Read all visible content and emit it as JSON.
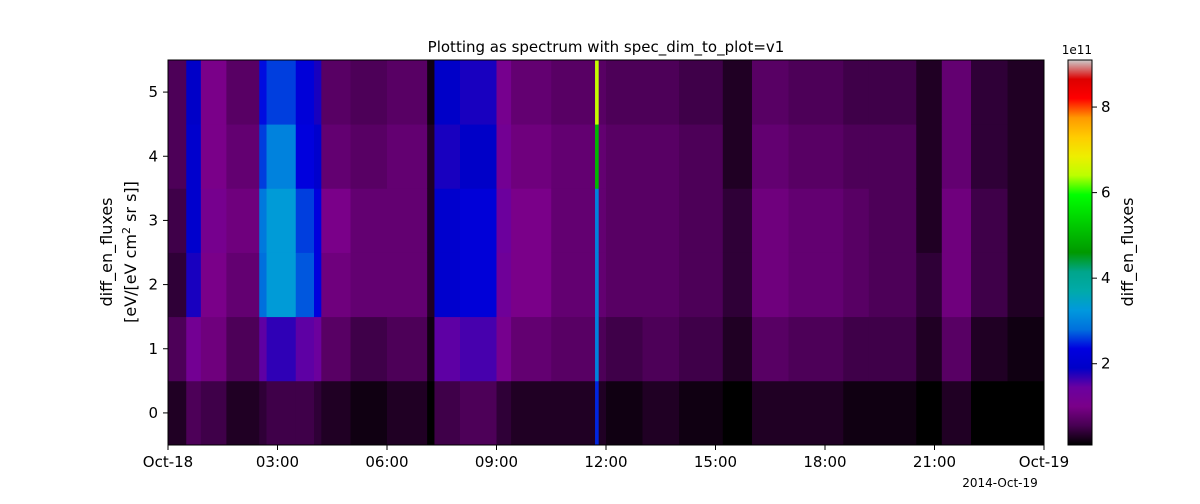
{
  "chart_data": {
    "type": "heatmap",
    "title": "Plotting as spectrum with spec_dim_to_plot=v1",
    "ylabel_line1": "diff_en_fluxes",
    "ylabel_line2_prefix": "[eV/[eV cm",
    "ylabel_line2_sup": "2",
    "ylabel_line2_suffix": " sr s]]",
    "x_tick_labels": [
      "Oct-18",
      "03:00",
      "06:00",
      "09:00",
      "12:00",
      "15:00",
      "18:00",
      "21:00",
      "Oct-19"
    ],
    "x_tick_hours": [
      0,
      3,
      6,
      9,
      12,
      15,
      18,
      21,
      24
    ],
    "x_date_label": "2014-Oct-19",
    "xlim_hours": [
      0,
      24
    ],
    "y_tick_labels": [
      "0",
      "1",
      "2",
      "3",
      "4",
      "5"
    ],
    "y_tick_values": [
      0,
      1,
      2,
      3,
      4,
      5
    ],
    "ylim": [
      -0.5,
      5.5
    ],
    "y_bin_edges": [
      -0.5,
      0.5,
      1.5,
      2.5,
      3.5,
      4.5,
      5.5
    ],
    "colorbar": {
      "label": "diff_en_fluxes",
      "multiplier_label": "1e11",
      "tick_labels": [
        "2",
        "4",
        "6",
        "8"
      ],
      "tick_values": [
        2,
        4,
        6,
        8
      ],
      "range": [
        0.1,
        9.1
      ],
      "colormap": "nipy_spectral"
    },
    "segments_hours": [
      0,
      0.5,
      0.9,
      1.6,
      2.5,
      2.7,
      3.5,
      4.0,
      4.2,
      5.0,
      6.0,
      7.1,
      7.3,
      8.0,
      9.0,
      9.4,
      10.5,
      11.7,
      11.8,
      12.0,
      13.0,
      14.0,
      15.2,
      16.0,
      17.0,
      18.5,
      19.2,
      20.5,
      21.2,
      22.0,
      23.0,
      24.0
    ],
    "segment_values": [
      [
        0.3,
        0.6,
        0.4,
        0.5,
        0.6,
        0.6
      ],
      [
        0.6,
        1.2,
        1.8,
        2.0,
        2.0,
        1.9
      ],
      [
        0.5,
        0.9,
        1.0,
        1.1,
        1.0,
        1.0
      ],
      [
        0.3,
        0.6,
        0.8,
        0.9,
        0.8,
        0.7
      ],
      [
        0.4,
        1.5,
        2.8,
        2.9,
        2.6,
        2.4
      ],
      [
        0.5,
        1.7,
        3.3,
        3.3,
        3.0,
        2.6
      ],
      [
        0.5,
        1.5,
        2.7,
        2.6,
        2.3,
        2.2
      ],
      [
        0.4,
        1.4,
        2.3,
        2.3,
        2.0,
        1.8
      ],
      [
        0.3,
        0.7,
        0.9,
        1.0,
        0.8,
        0.7
      ],
      [
        0.2,
        0.5,
        0.8,
        0.8,
        0.7,
        0.6
      ],
      [
        0.3,
        0.6,
        0.8,
        0.8,
        0.8,
        0.7
      ],
      [
        0.1,
        0.2,
        0.3,
        0.3,
        0.3,
        0.2
      ],
      [
        0.5,
        1.5,
        2.0,
        2.0,
        1.8,
        1.9
      ],
      [
        0.6,
        1.6,
        2.2,
        2.2,
        1.9,
        1.8
      ],
      [
        0.4,
        1.1,
        1.3,
        1.4,
        1.2,
        1.1
      ],
      [
        0.3,
        0.8,
        1.0,
        1.0,
        0.9,
        0.8
      ],
      [
        0.3,
        0.7,
        0.8,
        0.8,
        0.8,
        0.7
      ],
      [
        2.5,
        3.0,
        3.0,
        3.0,
        5.0,
        6.5
      ],
      [
        0.3,
        0.6,
        0.8,
        0.8,
        0.8,
        0.7
      ],
      [
        0.2,
        0.5,
        0.7,
        0.7,
        0.7,
        0.6
      ],
      [
        0.3,
        0.6,
        0.7,
        0.7,
        0.7,
        0.6
      ],
      [
        0.2,
        0.5,
        0.6,
        0.6,
        0.6,
        0.5
      ],
      [
        0.1,
        0.3,
        0.4,
        0.4,
        0.3,
        0.3
      ],
      [
        0.3,
        0.7,
        0.9,
        0.9,
        0.8,
        0.7
      ],
      [
        0.3,
        0.6,
        0.8,
        0.8,
        0.7,
        0.6
      ],
      [
        0.2,
        0.5,
        0.7,
        0.7,
        0.6,
        0.5
      ],
      [
        0.2,
        0.5,
        0.6,
        0.6,
        0.6,
        0.5
      ],
      [
        0.1,
        0.3,
        0.4,
        0.3,
        0.3,
        0.3
      ],
      [
        0.3,
        0.7,
        0.9,
        0.9,
        0.8,
        0.8
      ],
      [
        0.1,
        0.3,
        0.5,
        0.5,
        0.4,
        0.4
      ],
      [
        0.1,
        0.2,
        0.3,
        0.3,
        0.3,
        0.3
      ]
    ]
  }
}
